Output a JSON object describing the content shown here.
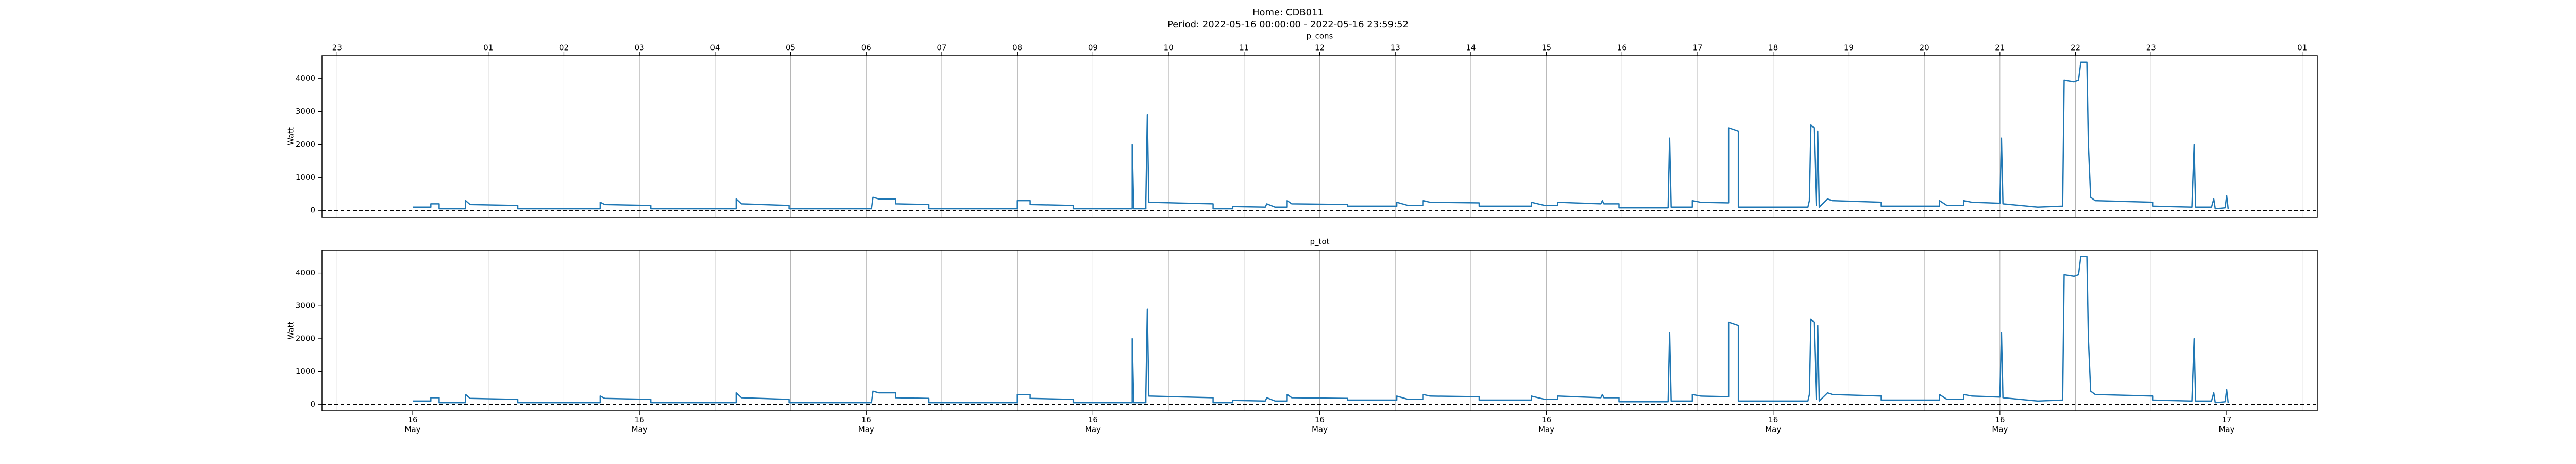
{
  "figure": {
    "title": "Home: CDB011",
    "subtitle": "Period: 2022-05-16 00:00:00 - 2022-05-16 23:59:52"
  },
  "chart_data": [
    {
      "type": "line",
      "title": "p_cons",
      "ylabel": "Watt",
      "color": "#1f77b4",
      "grid": true,
      "reference_line": 0,
      "xlim": [
        -1.2,
        25.2
      ],
      "ylim": [
        -200,
        4700
      ],
      "yticks": [
        0,
        1000,
        2000,
        3000,
        4000
      ],
      "top_xticks": [
        {
          "value": -1,
          "label": "23"
        },
        {
          "value": 1,
          "label": "01"
        },
        {
          "value": 2,
          "label": "02"
        },
        {
          "value": 3,
          "label": "03"
        },
        {
          "value": 4,
          "label": "04"
        },
        {
          "value": 5,
          "label": "05"
        },
        {
          "value": 6,
          "label": "06"
        },
        {
          "value": 7,
          "label": "07"
        },
        {
          "value": 8,
          "label": "08"
        },
        {
          "value": 9,
          "label": "09"
        },
        10,
        11,
        12,
        13,
        14,
        15,
        16,
        17,
        18,
        19,
        20,
        21,
        22,
        23,
        {
          "value": 25,
          "label": "01"
        }
      ],
      "x": [
        0,
        0.24,
        0.24,
        0.35,
        0.35,
        0.7,
        0.7,
        0.76,
        1.39,
        1.39,
        2.48,
        2.48,
        2.54,
        3.15,
        3.15,
        4.28,
        4.28,
        4.35,
        4.98,
        4.98,
        6.07,
        6.09,
        6.17,
        6.39,
        6.39,
        6.83,
        6.83,
        8.0,
        8.0,
        8.17,
        8.17,
        8.74,
        8.74,
        9.52,
        9.52,
        9.54,
        9.7,
        9.7,
        9.72,
        9.74,
        10.59,
        10.59,
        10.85,
        10.85,
        11.28,
        11.3,
        11.41,
        11.57,
        11.57,
        11.63,
        12.37,
        12.37,
        13.02,
        13.02,
        13.17,
        13.37,
        13.37,
        13.46,
        14.11,
        14.11,
        14.8,
        14.8,
        14.98,
        15.15,
        15.15,
        15.72,
        15.74,
        15.76,
        15.96,
        15.96,
        16.61,
        16.63,
        16.65,
        16.93,
        16.93,
        17.04,
        17.41,
        17.41,
        17.54,
        17.54,
        18.46,
        18.48,
        18.5,
        18.54,
        18.57,
        18.59,
        18.61,
        18.72,
        18.78,
        19.43,
        19.43,
        20.2,
        20.2,
        20.3,
        20.52,
        20.52,
        20.63,
        21.0,
        21.02,
        21.04,
        21.5,
        21.83,
        21.85,
        21.98,
        22.04,
        22.07,
        22.15,
        22.17,
        22.2,
        22.26,
        23.02,
        23.02,
        23.54,
        23.57,
        23.59,
        23.8,
        23.83,
        23.85,
        23.98,
        24.0,
        24.02
      ],
      "values": [
        100,
        100,
        200,
        200,
        50,
        50,
        300,
        180,
        150,
        50,
        50,
        250,
        180,
        150,
        50,
        50,
        350,
        200,
        150,
        50,
        50,
        400,
        350,
        350,
        200,
        180,
        50,
        50,
        300,
        300,
        180,
        150,
        50,
        50,
        2000,
        50,
        50,
        250,
        2900,
        250,
        200,
        50,
        50,
        120,
        100,
        200,
        100,
        100,
        300,
        200,
        180,
        130,
        130,
        250,
        150,
        150,
        300,
        250,
        230,
        130,
        130,
        250,
        150,
        150,
        250,
        200,
        300,
        200,
        200,
        80,
        80,
        2200,
        100,
        100,
        300,
        250,
        230,
        2500,
        2400,
        100,
        100,
        300,
        2600,
        2500,
        150,
        2400,
        100,
        350,
        300,
        250,
        130,
        130,
        300,
        150,
        150,
        300,
        250,
        220,
        2200,
        200,
        100,
        130,
        3950,
        3900,
        3950,
        4500,
        4500,
        2000,
        400,
        300,
        250,
        130,
        100,
        2000,
        100,
        100,
        350,
        50,
        80,
        450,
        50
      ]
    },
    {
      "type": "line",
      "title": "p_tot",
      "ylabel": "Watt",
      "color": "#1f77b4",
      "grid": true,
      "reference_line": 0,
      "xlim": [
        -1.2,
        25.2
      ],
      "ylim": [
        -200,
        4700
      ],
      "yticks": [
        0,
        1000,
        2000,
        3000,
        4000
      ],
      "xticks": [
        {
          "value": 0,
          "label": "16 May"
        },
        {
          "value": 3,
          "label": "16 May"
        },
        {
          "value": 6,
          "label": "16 May"
        },
        {
          "value": 9,
          "label": "16 May"
        },
        {
          "value": 12,
          "label": "16 May"
        },
        {
          "value": 15,
          "label": "16 May"
        },
        {
          "value": 18,
          "label": "16 May"
        },
        {
          "value": 21,
          "label": "16 May"
        },
        {
          "value": 24,
          "label": "17 May"
        }
      ],
      "x": [
        0,
        0.24,
        0.24,
        0.35,
        0.35,
        0.7,
        0.7,
        0.76,
        1.39,
        1.39,
        2.48,
        2.48,
        2.54,
        3.15,
        3.15,
        4.28,
        4.28,
        4.35,
        4.98,
        4.98,
        6.07,
        6.09,
        6.17,
        6.39,
        6.39,
        6.83,
        6.83,
        8.0,
        8.0,
        8.17,
        8.17,
        8.74,
        8.74,
        9.52,
        9.52,
        9.54,
        9.7,
        9.7,
        9.72,
        9.74,
        10.59,
        10.59,
        10.85,
        10.85,
        11.28,
        11.3,
        11.41,
        11.57,
        11.57,
        11.63,
        12.37,
        12.37,
        13.02,
        13.02,
        13.17,
        13.37,
        13.37,
        13.46,
        14.11,
        14.11,
        14.8,
        14.8,
        14.98,
        15.15,
        15.15,
        15.72,
        15.74,
        15.76,
        15.96,
        15.96,
        16.61,
        16.63,
        16.65,
        16.93,
        16.93,
        17.04,
        17.41,
        17.41,
        17.54,
        17.54,
        18.46,
        18.48,
        18.5,
        18.54,
        18.57,
        18.59,
        18.61,
        18.72,
        18.78,
        19.43,
        19.43,
        20.2,
        20.2,
        20.3,
        20.52,
        20.52,
        20.63,
        21.0,
        21.02,
        21.04,
        21.5,
        21.83,
        21.85,
        21.98,
        22.04,
        22.07,
        22.15,
        22.17,
        22.2,
        22.26,
        23.02,
        23.02,
        23.54,
        23.57,
        23.59,
        23.8,
        23.83,
        23.85,
        23.98,
        24.0,
        24.02
      ],
      "values": [
        100,
        100,
        200,
        200,
        50,
        50,
        300,
        180,
        150,
        50,
        50,
        250,
        180,
        150,
        50,
        50,
        350,
        200,
        150,
        50,
        50,
        400,
        350,
        350,
        200,
        180,
        50,
        50,
        300,
        300,
        180,
        150,
        50,
        50,
        2000,
        50,
        50,
        250,
        2900,
        250,
        200,
        50,
        50,
        120,
        100,
        200,
        100,
        100,
        300,
        200,
        180,
        130,
        130,
        250,
        150,
        150,
        300,
        250,
        230,
        130,
        130,
        250,
        150,
        150,
        250,
        200,
        300,
        200,
        200,
        80,
        80,
        2200,
        100,
        100,
        300,
        250,
        230,
        2500,
        2400,
        100,
        100,
        300,
        2600,
        2500,
        150,
        2400,
        100,
        350,
        300,
        250,
        130,
        130,
        300,
        150,
        150,
        300,
        250,
        220,
        2200,
        200,
        100,
        130,
        3950,
        3900,
        3950,
        4500,
        4500,
        2000,
        400,
        300,
        250,
        130,
        100,
        2000,
        100,
        100,
        350,
        50,
        80,
        450,
        50
      ]
    }
  ]
}
